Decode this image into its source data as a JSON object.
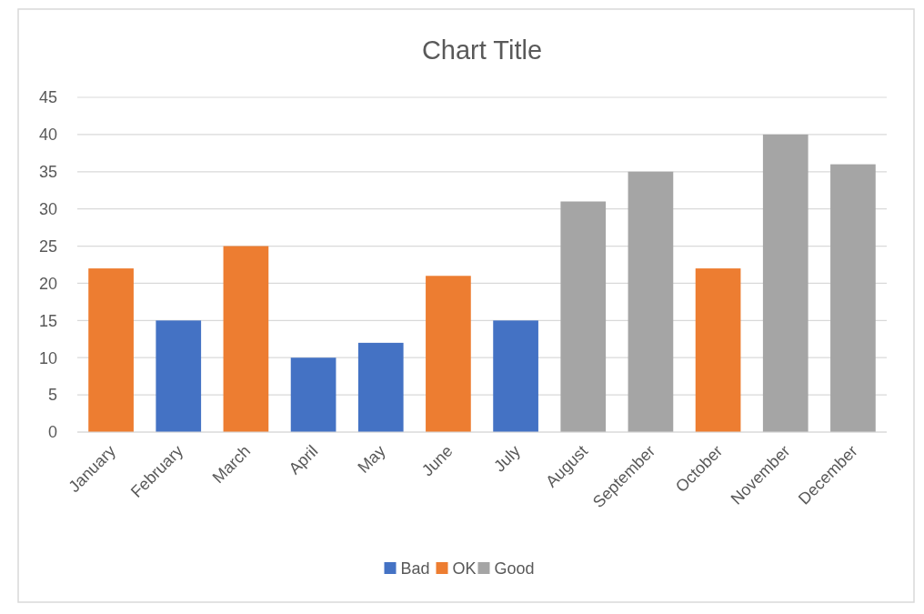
{
  "chart_data": {
    "type": "bar",
    "title": "Chart Title",
    "stacked": true,
    "categories": [
      "January",
      "February",
      "March",
      "April",
      "May",
      "June",
      "July",
      "August",
      "September",
      "October",
      "November",
      "December"
    ],
    "series": [
      {
        "name": "Bad",
        "color": "#4472c4",
        "values": [
          null,
          15,
          null,
          10,
          12,
          null,
          15,
          null,
          null,
          null,
          null,
          null
        ]
      },
      {
        "name": "OK",
        "color": "#ed7d31",
        "values": [
          22,
          null,
          25,
          null,
          null,
          21,
          null,
          null,
          null,
          22,
          null,
          null
        ]
      },
      {
        "name": "Good",
        "color": "#a5a5a5",
        "values": [
          null,
          null,
          null,
          null,
          null,
          null,
          null,
          31,
          35,
          null,
          40,
          36
        ]
      }
    ],
    "ylim": [
      0,
      45
    ],
    "yticks": [
      0,
      5,
      10,
      15,
      20,
      25,
      30,
      35,
      40,
      45
    ],
    "grid": "y",
    "legend": "bottom"
  }
}
